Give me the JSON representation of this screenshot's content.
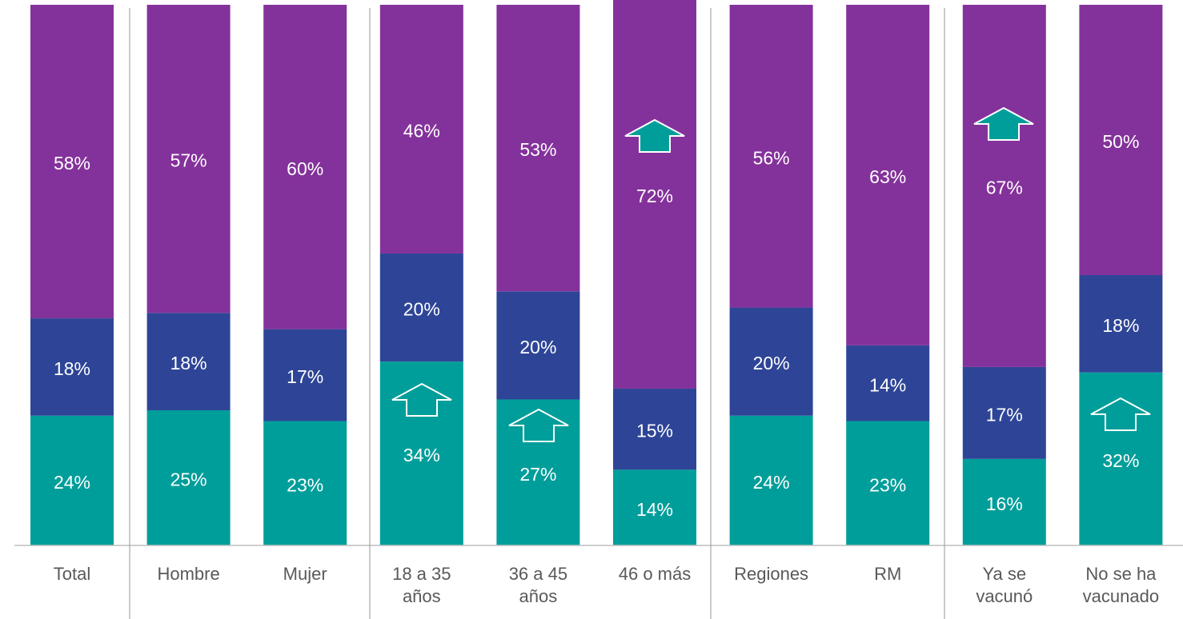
{
  "chart_data": {
    "type": "stacked_bar",
    "categories": [
      "Total",
      "Hombre",
      "Mujer",
      "18 a 35 años",
      "36 a 45 años",
      "46 o más",
      "Regiones",
      "RM",
      "Ya se vacunó",
      "No se ha vacunado"
    ],
    "series": [
      {
        "color": "#009e9a",
        "values": [
          24,
          25,
          23,
          34,
          27,
          14,
          24,
          23,
          16,
          32
        ],
        "value_labels": [
          "24%",
          "25%",
          "23%",
          "34%",
          "27%",
          "14%",
          "24%",
          "23%",
          "16%",
          "32%"
        ]
      },
      {
        "color": "#2e4597",
        "values": [
          18,
          18,
          17,
          20,
          20,
          15,
          20,
          14,
          17,
          18
        ],
        "value_labels": [
          "18%",
          "18%",
          "17%",
          "20%",
          "20%",
          "15%",
          "20%",
          "14%",
          "17%",
          "18%"
        ]
      },
      {
        "color": "#84329b",
        "values": [
          58,
          57,
          60,
          46,
          53,
          72,
          56,
          63,
          67,
          50
        ],
        "value_labels": [
          "58%",
          "57%",
          "60%",
          "46%",
          "53%",
          "72%",
          "56%",
          "63%",
          "67%",
          "50%"
        ]
      }
    ],
    "ylim": [
      0,
      100
    ]
  }
}
